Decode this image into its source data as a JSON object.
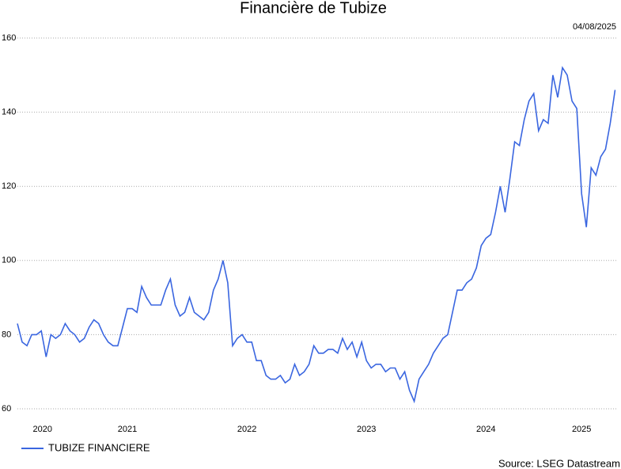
{
  "chart_data": {
    "type": "line",
    "title": "Financière de Tubize",
    "date": "04/08/2025",
    "source": "Source: LSEG Datastream",
    "x": [
      2020.58,
      2020.62,
      2020.66,
      2020.7,
      2020.74,
      2020.78,
      2020.82,
      2020.86,
      2020.9,
      2020.94,
      2020.98,
      2021.02,
      2021.06,
      2021.1,
      2021.14,
      2021.18,
      2021.22,
      2021.26,
      2021.3,
      2021.34,
      2021.38,
      2021.42,
      2021.46,
      2021.5,
      2021.54,
      2021.58,
      2021.62,
      2021.66,
      2021.7,
      2021.74,
      2021.78,
      2021.82,
      2021.86,
      2021.9,
      2021.94,
      2021.98,
      2022.02,
      2022.06,
      2022.1,
      2022.14,
      2022.18,
      2022.22,
      2022.26,
      2022.3,
      2022.34,
      2022.38,
      2022.42,
      2022.46,
      2022.5,
      2022.54,
      2022.58,
      2022.62,
      2022.66,
      2022.7,
      2022.74,
      2022.78,
      2022.82,
      2022.86,
      2022.9,
      2022.94,
      2022.98,
      2023.02,
      2023.06,
      2023.1,
      2023.14,
      2023.18,
      2023.22,
      2023.26,
      2023.3,
      2023.34,
      2023.38,
      2023.42,
      2023.46,
      2023.5,
      2023.54,
      2023.58,
      2023.62,
      2023.66,
      2023.7,
      2023.74,
      2023.78,
      2023.82,
      2023.86,
      2023.9,
      2023.94,
      2023.98,
      2024.02,
      2024.06,
      2024.1,
      2024.14,
      2024.18,
      2024.22,
      2024.26,
      2024.3,
      2024.34,
      2024.38,
      2024.42,
      2024.46,
      2024.5,
      2024.54,
      2024.58,
      2024.62,
      2024.66,
      2024.7,
      2024.74,
      2024.78,
      2024.82,
      2024.86,
      2024.9,
      2024.94,
      2024.98,
      2025.02,
      2025.06,
      2025.1,
      2025.14,
      2025.18,
      2025.22,
      2025.26,
      2025.3,
      2025.34,
      2025.38,
      2025.42,
      2025.46,
      2025.5,
      2025.54,
      2025.58
    ],
    "series": [
      {
        "name": "TUBIZE FINANCIERE",
        "color": "#3a66e0",
        "values": [
          83,
          78,
          77,
          80,
          80,
          81,
          74,
          80,
          79,
          80,
          83,
          81,
          80,
          78,
          79,
          82,
          84,
          83,
          80,
          78,
          77,
          77,
          82,
          87,
          87,
          86,
          93,
          90,
          88,
          88,
          88,
          92,
          95,
          88,
          85,
          86,
          90,
          86,
          85,
          84,
          86,
          92,
          95,
          100,
          94,
          77,
          79,
          80,
          78,
          78,
          73,
          73,
          69,
          68,
          68,
          69,
          67,
          68,
          72,
          69,
          70,
          72,
          77,
          75,
          75,
          76,
          76,
          75,
          79,
          76,
          78,
          74,
          78,
          73,
          71,
          72,
          72,
          70,
          71,
          71,
          68,
          70,
          65,
          62,
          68,
          70,
          72,
          75,
          77,
          79,
          80,
          86,
          92,
          92,
          94,
          95,
          98,
          104,
          106,
          107,
          113,
          120,
          113,
          122,
          132,
          131,
          138,
          143,
          145,
          135,
          138,
          137,
          150,
          144,
          152,
          150,
          143,
          141,
          118,
          109,
          125,
          123,
          128,
          130,
          137,
          146
        ]
      }
    ],
    "xlim": [
      2020.58,
      2025.59
    ],
    "xticks": [
      {
        "value": 2020.79,
        "label": "2020"
      },
      {
        "value": 2021.5,
        "label": "2021"
      },
      {
        "value": 2022.5,
        "label": "2022"
      },
      {
        "value": 2023.5,
        "label": "2023"
      },
      {
        "value": 2024.5,
        "label": "2024"
      },
      {
        "value": 2025.3,
        "label": "2025"
      }
    ],
    "ylim": [
      60,
      160
    ],
    "yticks": [
      60,
      80,
      100,
      120,
      140,
      160
    ],
    "grid": true
  }
}
